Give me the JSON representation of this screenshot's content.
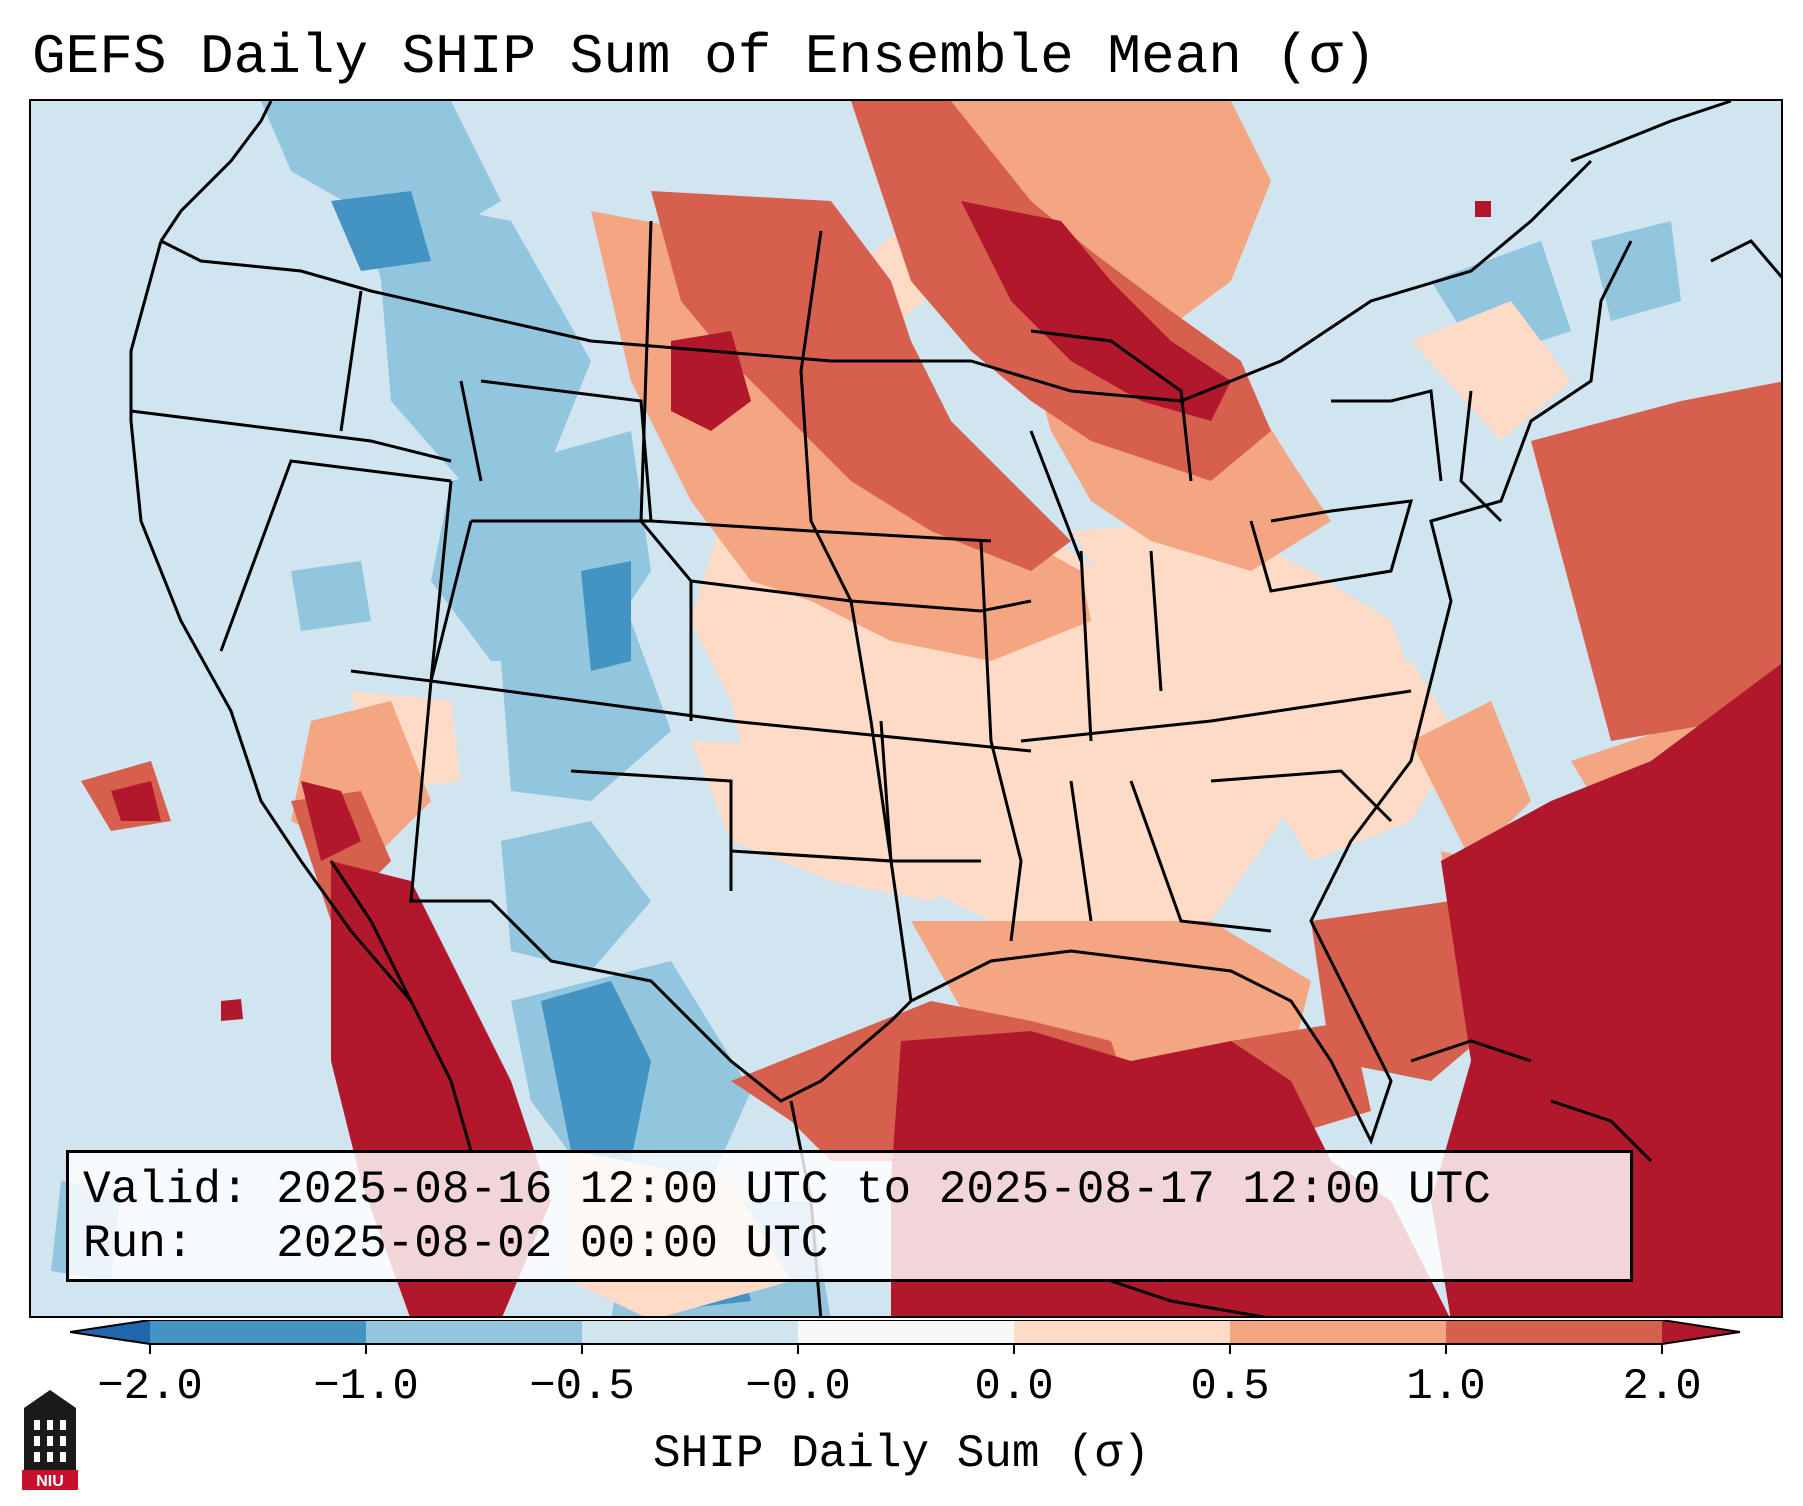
{
  "title": "GEFS Daily SHIP Sum of Ensemble Mean (σ)",
  "info_box": {
    "valid_label": "Valid:",
    "valid_value": "2025-08-16 12:00 UTC to 2025-08-17 12:00 UTC",
    "run_label": "Run:",
    "run_value": "2025-08-02 00:00 UTC"
  },
  "colorbar": {
    "label": "SHIP Daily Sum (σ)",
    "ticks": [
      "−2.0",
      "−1.0",
      "−0.5",
      "−0.0",
      "0.0",
      "0.5",
      "1.0",
      "2.0"
    ],
    "colors": [
      "#2166ac",
      "#4393c3",
      "#92c5de",
      "#d1e5f0",
      "#f7f7f7",
      "#fddbc7",
      "#f4a582",
      "#d6604d",
      "#b2182b"
    ]
  },
  "map": {
    "region": "Continental United States",
    "background_color": "#d1e5f0",
    "high_color": "#b2182b",
    "mid_high_color": "#d6604d",
    "low_high_color": "#f4a582",
    "slight_high_color": "#fddbc7",
    "low_color": "#92c5de",
    "very_low_color": "#4393c3"
  },
  "logo": {
    "text": "NIU"
  }
}
